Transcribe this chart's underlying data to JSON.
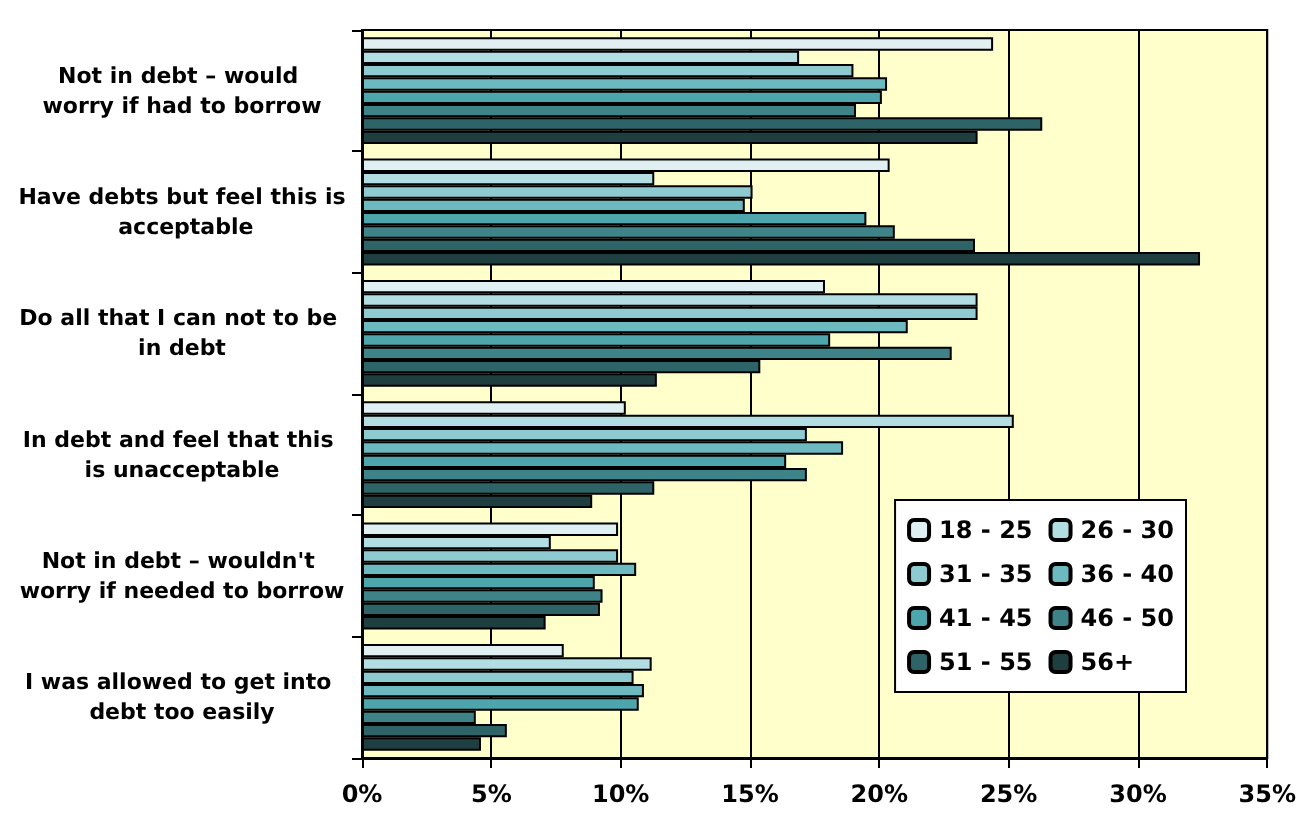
{
  "chart_data": {
    "type": "bar",
    "orientation": "horizontal",
    "categories": [
      "Not in debt – would worry if had to borrow",
      "Have debts but feel this is acceptable",
      "Do all that I can not to be in debt",
      "In debt and feel that this is unacceptable",
      "Not in debt – wouldn't worry if needed to borrow",
      "I was allowed to get into debt too easily"
    ],
    "series": [
      {
        "name": "18 - 25",
        "color": "#e0f0f2",
        "values": [
          24.4,
          20.4,
          17.9,
          10.2,
          9.9,
          7.8
        ]
      },
      {
        "name": "26 - 30",
        "color": "#b2dde2",
        "values": [
          16.9,
          11.3,
          23.8,
          25.2,
          7.3,
          11.2
        ]
      },
      {
        "name": "31 - 35",
        "color": "#8ecbd1",
        "values": [
          19.0,
          15.1,
          23.8,
          17.2,
          9.9,
          10.5
        ]
      },
      {
        "name": "36 - 40",
        "color": "#6cb9bf",
        "values": [
          20.3,
          14.8,
          21.1,
          18.6,
          10.6,
          10.9
        ]
      },
      {
        "name": "41 - 45",
        "color": "#4ea6ad",
        "values": [
          20.1,
          19.5,
          18.1,
          16.4,
          9.0,
          10.7
        ]
      },
      {
        "name": "46 - 50",
        "color": "#3d8387",
        "values": [
          19.1,
          20.6,
          22.8,
          17.2,
          9.3,
          4.4
        ]
      },
      {
        "name": "51 - 55",
        "color": "#2e6468",
        "values": [
          26.3,
          23.7,
          15.4,
          11.3,
          9.2,
          5.6
        ]
      },
      {
        "name": "56+",
        "color": "#1f3e40",
        "values": [
          23.8,
          32.4,
          11.4,
          8.9,
          7.1,
          4.6
        ]
      }
    ],
    "xlim": [
      0,
      35
    ],
    "xticks": [
      {
        "value": 0,
        "label": "0%"
      },
      {
        "value": 5,
        "label": "5%"
      },
      {
        "value": 10,
        "label": "10%"
      },
      {
        "value": 15,
        "label": "15%"
      },
      {
        "value": 20,
        "label": "20%"
      },
      {
        "value": 25,
        "label": "25%"
      },
      {
        "value": 30,
        "label": "30%"
      },
      {
        "value": 35,
        "label": "35%"
      }
    ],
    "grid": "x",
    "legend": "bottom right"
  }
}
